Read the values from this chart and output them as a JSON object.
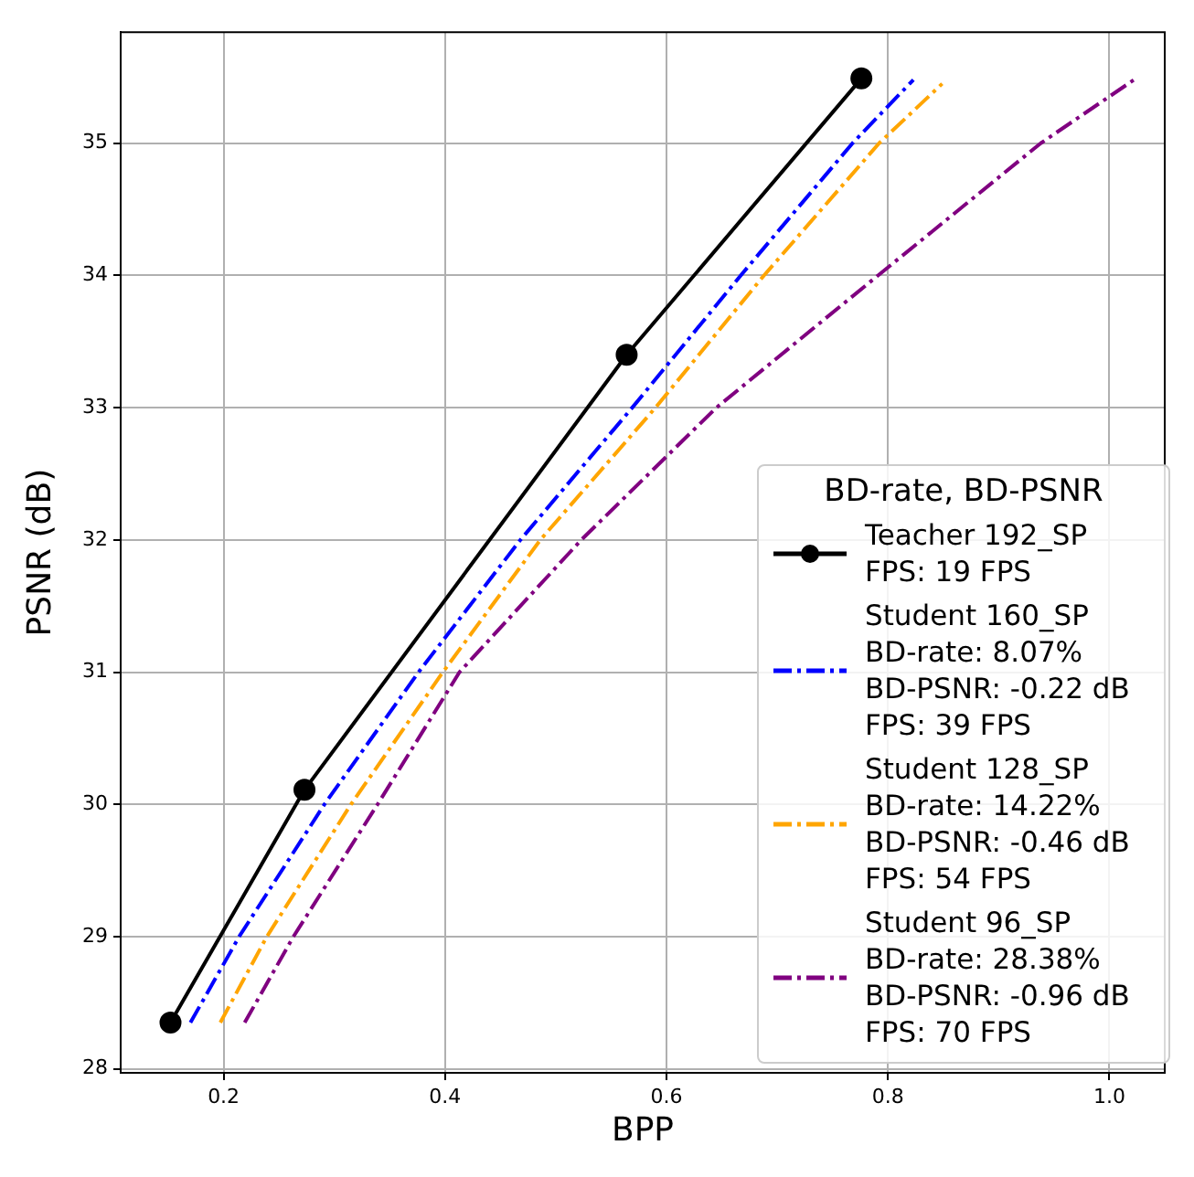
{
  "chart_data": {
    "type": "line",
    "xlabel": "BPP",
    "ylabel": "PSNR (dB)",
    "legend_title": "BD-rate, BD-PSNR",
    "xlim": [
      0.107,
      1.05
    ],
    "xticks": [
      {
        "value": 0.2,
        "label": "0.2"
      },
      {
        "value": 0.4,
        "label": "0.4"
      },
      {
        "value": 0.6,
        "label": "0.6"
      },
      {
        "value": 0.8,
        "label": "0.8"
      },
      {
        "value": 1.0,
        "label": "1.0"
      }
    ],
    "ylim": [
      27.97,
      35.84
    ],
    "yticks": [
      28,
      29,
      30,
      31,
      32,
      33,
      34,
      35
    ],
    "grid": true,
    "legend": "bottom right",
    "series": [
      {
        "name": "Teacher 192_SP\nFPS: 19 FPS",
        "color": "#000000",
        "marker": "circle",
        "line_style": "solid",
        "x": [
          0.152,
          0.273,
          0.564,
          0.776
        ],
        "values": [
          28.35,
          30.11,
          33.4,
          35.49
        ]
      },
      {
        "name": "Student 160_SP\nBD-rate: 8.07%\nBD-PSNR: -0.22 dB\nFPS: 39 FPS",
        "color": "#0000ff",
        "marker": "none",
        "line_style": "dashed",
        "x": [
          0.17,
          0.214,
          0.291,
          0.376,
          0.468,
          0.569,
          0.667,
          0.768,
          0.823
        ],
        "values": [
          28.35,
          29,
          30,
          31,
          32,
          33,
          34,
          35,
          35.48
        ]
      },
      {
        "name": "Student 128_SP\nBD-rate: 14.22%\nBD-PSNR: -0.46 dB\nFPS: 54 FPS",
        "color": "#ffa500",
        "marker": "none",
        "line_style": "dashed",
        "x": [
          0.197,
          0.239,
          0.315,
          0.398,
          0.486,
          0.59,
          0.688,
          0.792,
          0.849
        ],
        "values": [
          28.35,
          29,
          30,
          31,
          32,
          33,
          34,
          35,
          35.45
        ]
      },
      {
        "name": "Student 96_SP\nBD-rate: 28.38%\nBD-PSNR: -0.96 dB\nFPS: 70 FPS",
        "color": "#800080",
        "marker": "none",
        "line_style": "dashed",
        "x": [
          0.219,
          0.263,
          0.339,
          0.413,
          0.523,
          0.645,
          0.791,
          0.938,
          1.024
        ],
        "values": [
          28.35,
          29,
          30,
          31,
          32,
          33,
          34,
          35,
          35.49
        ]
      }
    ]
  }
}
